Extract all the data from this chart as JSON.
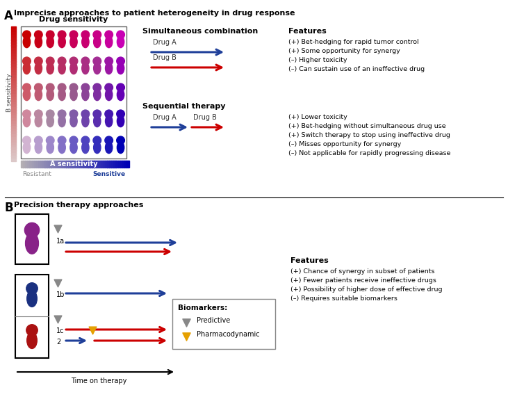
{
  "title_A": "Imprecise approaches to patient heterogeneity in drug response",
  "title_B": "Precision therapy approaches",
  "drug_sensitivity_label": "Drug sensitivity",
  "b_sensitivity_label": "B sensitivity",
  "a_sensitivity_label": "A sensitivity",
  "resistant_label": "Resistant",
  "sensitive_label": "Sensitive",
  "simultaneous_title": "Simultaneous combination",
  "sequential_title": "Sequential therapy",
  "features_title": "Features",
  "features_B_title": "Features",
  "sim_features": [
    "(+) Bet-hedging for rapid tumor control",
    "(+) Some opportunity for synergy",
    "(–) Higher toxicity",
    "(–) Can sustain use of an ineffective drug"
  ],
  "seq_features": [
    "(+) Lower toxicity",
    "(+) Bet-hedging without simultaneous drug use",
    "(+) Switch therapy to stop using ineffective drug",
    "(–) Misses opportunity for synergy",
    "(–) Not applicable for rapidly progressing disease"
  ],
  "prec_features": [
    "(+) Chance of synergy in subset of patients",
    "(+) Fewer patients receive ineffective drugs",
    "(+) Possibility of higher dose of effective drug",
    "(–) Requires suitable biomarkers"
  ],
  "biomarkers_title": "Biomarkers:",
  "biomarker_predictive": "Predictive",
  "biomarker_pharmaco": "Pharmacodynamic",
  "time_label": "Time on therapy",
  "blue_color": "#1F3F99",
  "red_color": "#CC0000",
  "purple_color": "#882288",
  "navy_color": "#1a3080",
  "dark_red_color": "#AA1111",
  "gray_color": "#888888",
  "yellow_color": "#E5A000",
  "grid_rows": 5,
  "grid_cols": 9
}
